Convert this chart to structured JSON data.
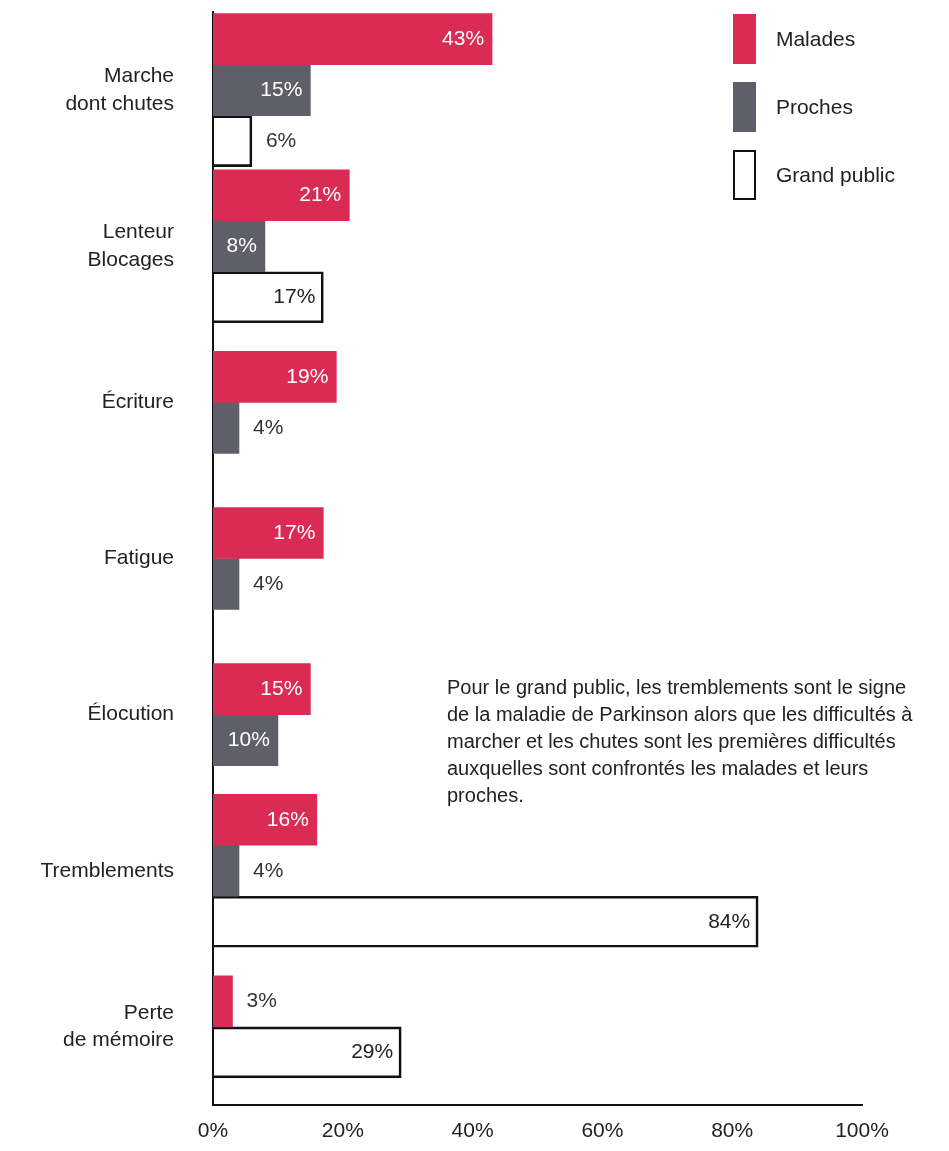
{
  "chart_data": {
    "type": "bar",
    "orientation": "horizontal",
    "categories": [
      "Marche\ndont chutes",
      "Lenteur\nBlocages",
      "Écriture",
      "Fatigue",
      "Élocution",
      "Tremblements",
      "Perte\nde mémoire"
    ],
    "series": [
      {
        "name": "Malades",
        "color": "#d92b53",
        "values": [
          43,
          21,
          19,
          17,
          15,
          16,
          3
        ],
        "value_labels": [
          "43%",
          "21%",
          "19%",
          "17%",
          "15%",
          "16%",
          "3%"
        ]
      },
      {
        "name": "Proches",
        "color": "#5f5f69",
        "values": [
          15,
          8,
          4,
          4,
          10,
          4,
          null
        ],
        "value_labels": [
          "15%",
          "8%",
          "4%",
          "4%",
          "10%",
          "4%",
          null
        ]
      },
      {
        "name": "Grand public",
        "color": "#111111",
        "values": [
          6,
          17,
          null,
          null,
          null,
          84,
          29
        ],
        "value_labels": [
          "6%",
          "17%",
          null,
          null,
          null,
          "84%",
          "29%"
        ]
      }
    ],
    "xlim": [
      0,
      100
    ],
    "xticks": [
      {
        "value": 0,
        "label": "0%"
      },
      {
        "value": 20,
        "label": "20%"
      },
      {
        "value": 40,
        "label": "40%"
      },
      {
        "value": 60,
        "label": "60%"
      },
      {
        "value": 80,
        "label": "80%"
      },
      {
        "value": 100,
        "label": "100%"
      }
    ],
    "grid": false,
    "legend": "top right",
    "annotations": [
      "Pour le grand public, les tremblements sont le signe de la maladie de Parkinson alors que les difficultés à marcher et les chutes sont les premières difficultés auxquelles sont confrontés les malades et leurs proches."
    ]
  }
}
